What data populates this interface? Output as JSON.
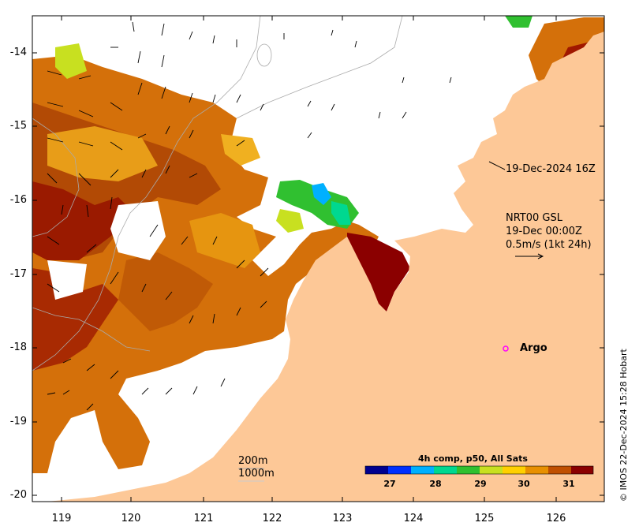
{
  "timestamp_label": "19-Dec-2024 16Z",
  "current_info": {
    "product": "NRT00 GSL",
    "time": "19-Dec 00:00Z",
    "scale": "0.5m/s (1kt 24h)"
  },
  "argo_label": "Argo",
  "contours": {
    "c200": "200m",
    "c1000": "1000m"
  },
  "colorbar": {
    "title": "4h comp, p50, All Sats",
    "ticks": [
      "27",
      "28",
      "29",
      "30",
      "31"
    ],
    "colors": [
      "#00008f",
      "#0030ff",
      "#00b0ff",
      "#00d890",
      "#30c030",
      "#c8e020",
      "#ffd000",
      "#e89000",
      "#c05000",
      "#8b0000"
    ]
  },
  "axes": {
    "lat_ticks": [
      "-14",
      "-15",
      "-16",
      "-17",
      "-18",
      "-19",
      "-20"
    ],
    "lon_ticks": [
      "119",
      "120",
      "121",
      "122",
      "123",
      "124",
      "125",
      "126"
    ]
  },
  "credit": "© IMOS 22-Dec-2024 15:28 Hobart",
  "colors": {
    "land": "#fdc897",
    "warm": "#d4700a",
    "hot": "#9a0e00",
    "argo": "#ff00ff"
  }
}
